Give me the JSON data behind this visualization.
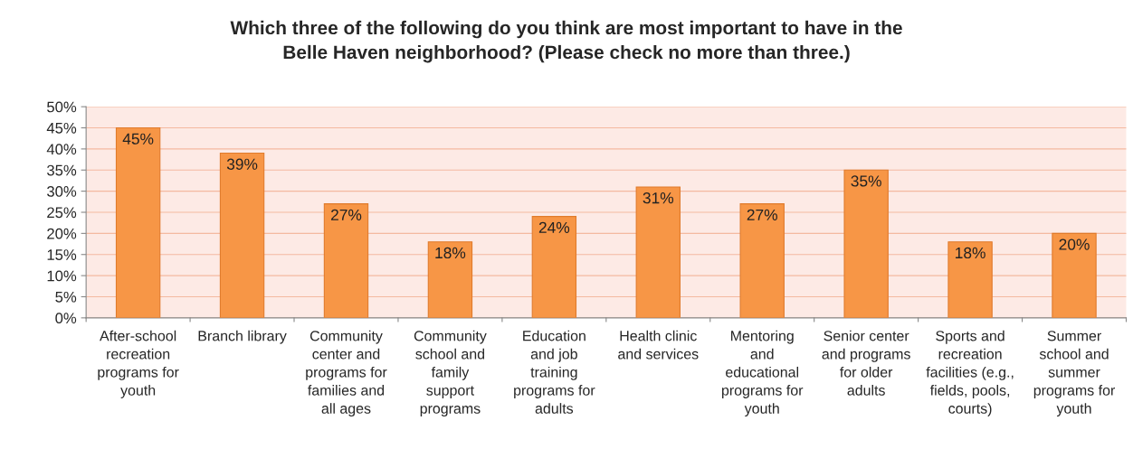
{
  "chart_data": {
    "type": "bar",
    "title": "Which three of the following do you think are most important to have in the\nBelle Haven neighborhood? (Please check no more than three.)",
    "categories": [
      "After-school\nrecreation\nprograms for\nyouth",
      "Branch library",
      "Community\ncenter and\nprograms for\nfamilies and\nall ages",
      "Community\nschool and\nfamily\nsupport\nprograms",
      "Education\nand job\ntraining\nprograms for\nadults",
      "Health clinic\nand services",
      "Mentoring\nand\neducational\nprograms for\nyouth",
      "Senior center\nand programs\nfor older\nadults",
      "Sports and\nrecreation\nfacilities (e.g.,\nfields, pools,\ncourts)",
      "Summer\nschool and\nsummer\nprograms for\nyouth"
    ],
    "values": [
      45,
      39,
      27,
      18,
      24,
      31,
      27,
      35,
      18,
      20
    ],
    "value_labels": [
      "45%",
      "39%",
      "27%",
      "18%",
      "24%",
      "31%",
      "27%",
      "35%",
      "18%",
      "20%"
    ],
    "color": "#f79646",
    "ylim": [
      0,
      50
    ],
    "yticks": [
      {
        "value": 0,
        "label": "0%"
      },
      {
        "value": 5,
        "label": "5%"
      },
      {
        "value": 10,
        "label": "10%"
      },
      {
        "value": 15,
        "label": "15%"
      },
      {
        "value": 20,
        "label": "20%"
      },
      {
        "value": 25,
        "label": "25%"
      },
      {
        "value": 30,
        "label": "30%"
      },
      {
        "value": 35,
        "label": "35%"
      },
      {
        "value": 40,
        "label": "40%"
      },
      {
        "value": 45,
        "label": "45%"
      },
      {
        "value": 50,
        "label": "50%"
      }
    ],
    "grid": "y"
  }
}
